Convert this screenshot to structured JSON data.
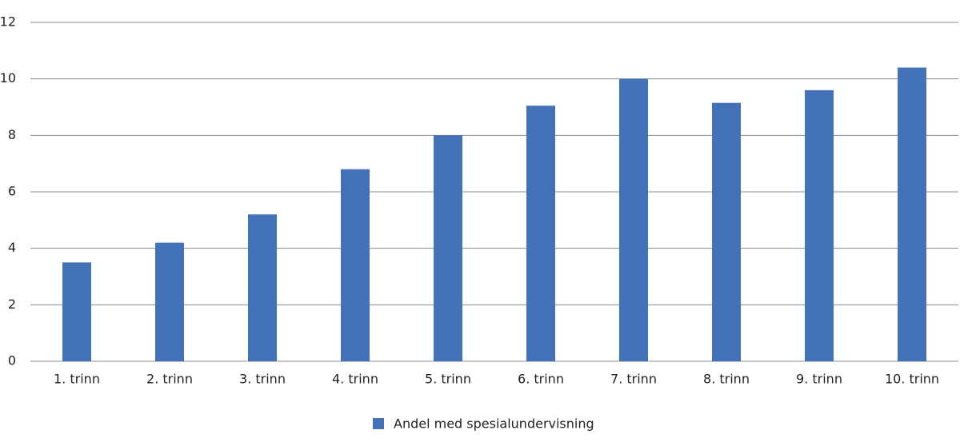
{
  "chart_data": {
    "type": "bar",
    "categories": [
      "1. trinn",
      "2. trinn",
      "3. trinn",
      "4. trinn",
      "5. trinn",
      "6. trinn",
      "7. trinn",
      "8. trinn",
      "9. trinn",
      "10. trinn"
    ],
    "series": [
      {
        "name": "Andel med spesialundervisning",
        "color": "#4472b8",
        "values": [
          3.5,
          4.2,
          5.2,
          6.8,
          8.0,
          9.05,
          10.0,
          9.15,
          9.6,
          10.4
        ]
      }
    ],
    "ylim": [
      0,
      12
    ],
    "yticks": [
      0,
      2,
      4,
      6,
      8,
      10,
      12
    ],
    "grid": true,
    "legend": "bottom"
  }
}
